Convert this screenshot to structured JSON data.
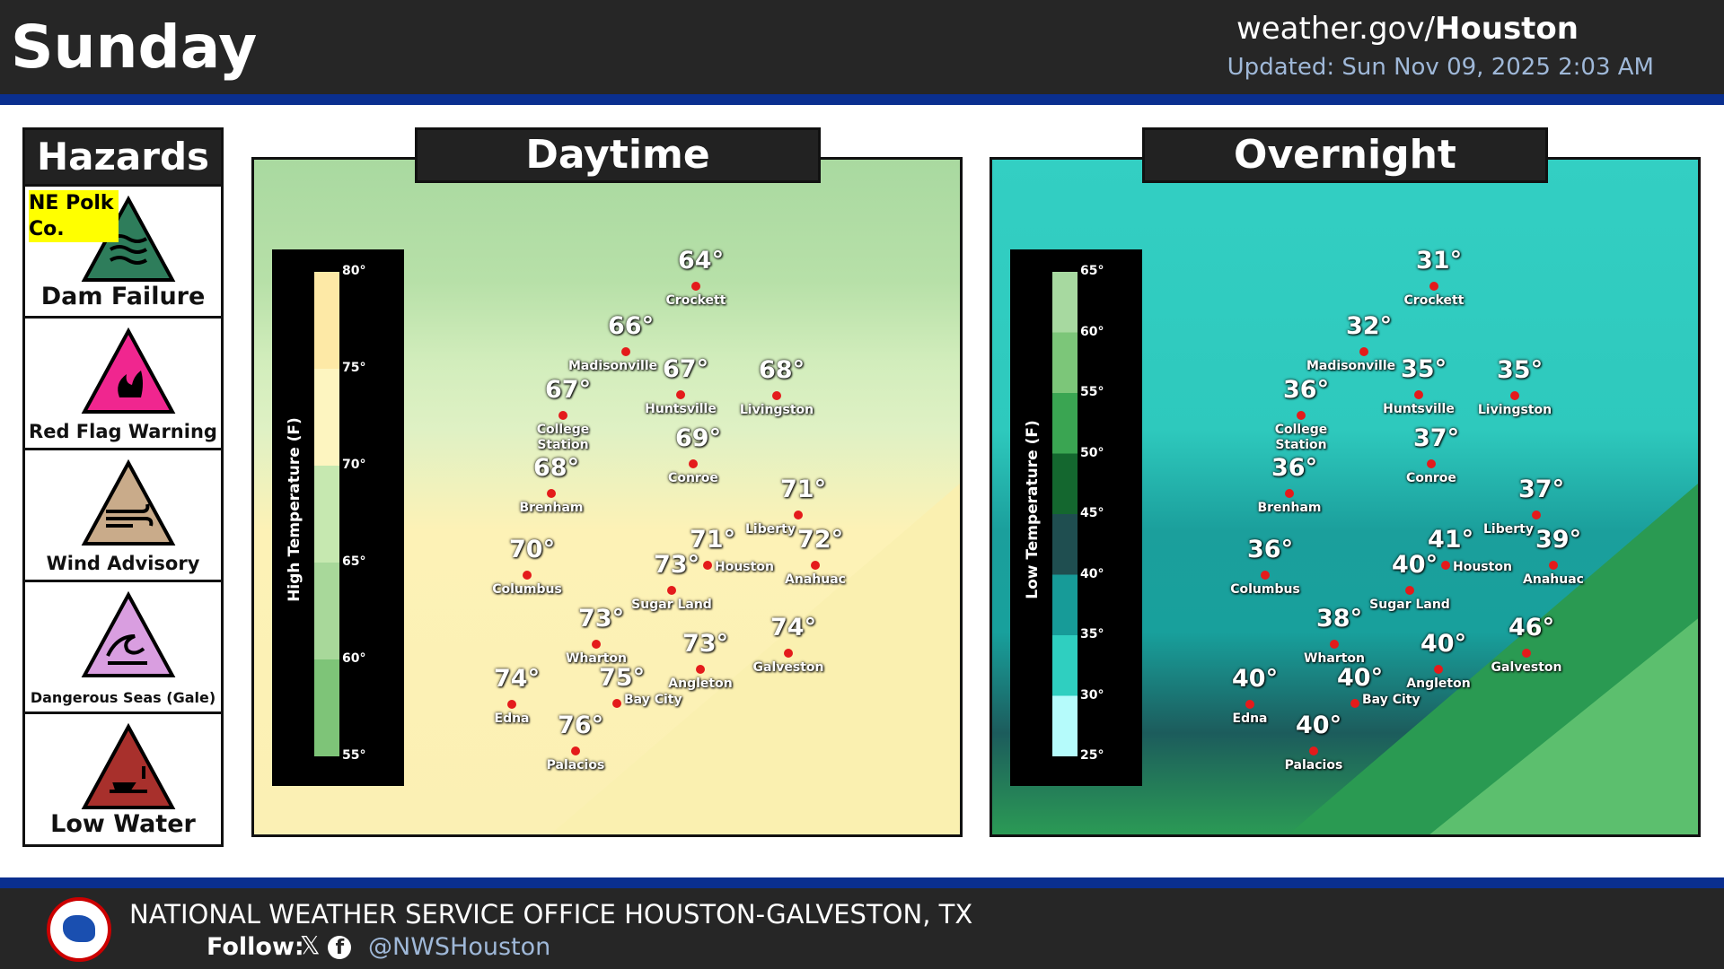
{
  "header": {
    "title": "Sunday",
    "site_prefix": "weather.gov/",
    "site_bold": "Houston",
    "updated": "Updated: Sun Nov 09, 2025 2:03 AM"
  },
  "hazards": {
    "title": "Hazards",
    "items": [
      {
        "label": "Dam Failure",
        "tag": "NE Polk Co.",
        "icon": "dam-failure-icon",
        "color": "#2e7d5b"
      },
      {
        "label": "Red Flag Warning",
        "icon": "red-flag-fire-icon",
        "color": "#f0268f"
      },
      {
        "label": "Wind Advisory",
        "icon": "wind-icon",
        "color": "#c9ab8a"
      },
      {
        "label": "Dangerous Seas (Gale)",
        "icon": "waves-icon",
        "color": "#d99ee0"
      },
      {
        "label": "Low Water",
        "icon": "low-water-icon",
        "color": "#a8302c"
      }
    ]
  },
  "daytime": {
    "title": "Daytime",
    "legend_title": "High Temperature (F)",
    "ticks": [
      "80°",
      "75°",
      "70°",
      "65°",
      "60°",
      "55°"
    ],
    "cities": [
      {
        "name": "Crockett",
        "temp": "64°"
      },
      {
        "name": "Madisonville",
        "temp": "66°"
      },
      {
        "name": "Huntsville",
        "temp": "67°"
      },
      {
        "name": "Livingston",
        "temp": "68°"
      },
      {
        "name": "College Station",
        "temp": "67°"
      },
      {
        "name": "Conroe",
        "temp": "69°"
      },
      {
        "name": "Brenham",
        "temp": "68°"
      },
      {
        "name": "Liberty",
        "temp": "71°"
      },
      {
        "name": "Columbus",
        "temp": "70°"
      },
      {
        "name": "Houston",
        "temp": "71°"
      },
      {
        "name": "Anahuac",
        "temp": "72°"
      },
      {
        "name": "Sugar Land",
        "temp": "73°"
      },
      {
        "name": "Wharton",
        "temp": "73°"
      },
      {
        "name": "Angleton",
        "temp": "73°"
      },
      {
        "name": "Galveston",
        "temp": "74°"
      },
      {
        "name": "Edna",
        "temp": "74°"
      },
      {
        "name": "Bay City",
        "temp": "75°"
      },
      {
        "name": "Palacios",
        "temp": "76°"
      }
    ]
  },
  "overnight": {
    "title": "Overnight",
    "legend_title": "Low Temperature (F)",
    "ticks": [
      "65°",
      "60°",
      "55°",
      "50°",
      "45°",
      "40°",
      "35°",
      "30°",
      "25°"
    ],
    "cities": [
      {
        "name": "Crockett",
        "temp": "31°"
      },
      {
        "name": "Madisonville",
        "temp": "32°"
      },
      {
        "name": "Huntsville",
        "temp": "35°"
      },
      {
        "name": "Livingston",
        "temp": "35°"
      },
      {
        "name": "College Station",
        "temp": "36°"
      },
      {
        "name": "Conroe",
        "temp": "37°"
      },
      {
        "name": "Brenham",
        "temp": "36°"
      },
      {
        "name": "Liberty",
        "temp": "37°"
      },
      {
        "name": "Columbus",
        "temp": "36°"
      },
      {
        "name": "Houston",
        "temp": "41°"
      },
      {
        "name": "Anahuac",
        "temp": "39°"
      },
      {
        "name": "Sugar Land",
        "temp": "40°"
      },
      {
        "name": "Wharton",
        "temp": "38°"
      },
      {
        "name": "Angleton",
        "temp": "40°"
      },
      {
        "name": "Galveston",
        "temp": "46°"
      },
      {
        "name": "Edna",
        "temp": "40°"
      },
      {
        "name": "Bay City",
        "temp": "40°"
      },
      {
        "name": "Palacios",
        "temp": "40°"
      }
    ]
  },
  "footer": {
    "org": "NATIONAL WEATHER SERVICE OFFICE HOUSTON-GALVESTON, TX",
    "follow": "Follow:",
    "handle": "@NWSHouston",
    "icons": [
      "x-icon",
      "facebook-icon"
    ]
  }
}
